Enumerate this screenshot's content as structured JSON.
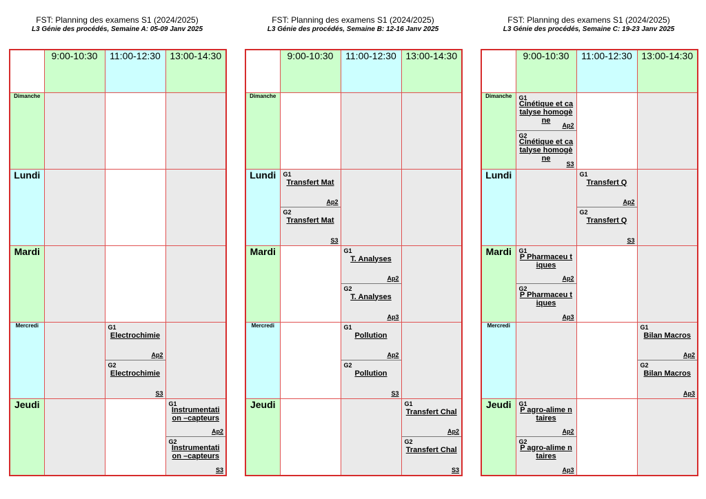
{
  "timeslots": [
    "9:00-10:30",
    "11:00-12:30",
    "13:00-14:30"
  ],
  "days": [
    "Dimanche",
    "Lundi",
    "Mardi",
    "Mercredi",
    "Jeudi"
  ],
  "weeks": [
    {
      "title": "FST: Planning des examens S1 (2024/2025)",
      "subtitle": "L3 Génie des procédés, Semaine A: 05-09 Janv 2025",
      "exams": {
        "3-1": [
          {
            "group": "G1",
            "subject": "Electrochimie",
            "room": "Ap2"
          },
          {
            "group": "G2",
            "subject": "Electrochimie",
            "room": "S3"
          }
        ],
        "4-2": [
          {
            "group": "G1",
            "subject": "Instrumentati on –capteurs",
            "room": "Ap2"
          },
          {
            "group": "G2",
            "subject": "Instrumentati on –capteurs",
            "room": "S3"
          }
        ]
      }
    },
    {
      "title": "FST: Planning des examens S1 (2024/2025)",
      "subtitle": "L3 Génie des procédés, Semaine B: 12-16 Janv 2025",
      "exams": {
        "1-0": [
          {
            "group": "G1",
            "subject": "Transfert Mat",
            "room": "Ap2"
          },
          {
            "group": "G2",
            "subject": "Transfert Mat",
            "room": "S3"
          }
        ],
        "2-1": [
          {
            "group": "G1",
            "subject": "T. Analyses",
            "room": "Ap2"
          },
          {
            "group": "G2",
            "subject": "T. Analyses",
            "room": "Ap3"
          }
        ],
        "3-1": [
          {
            "group": "G1",
            "subject": "Pollution",
            "room": "Ap2"
          },
          {
            "group": "G2",
            "subject": "Pollution",
            "room": "S3"
          }
        ],
        "4-2": [
          {
            "group": "G1",
            "subject": "Transfert Chal",
            "room": "Ap2"
          },
          {
            "group": "G2",
            "subject": "Transfert Chal",
            "room": "S3"
          }
        ]
      }
    },
    {
      "title": "FST: Planning des examens S1 (2024/2025)",
      "subtitle": "L3 Génie des procédés, Semaine C: 19-23 Janv 2025",
      "exams": {
        "0-0": [
          {
            "group": "G1",
            "subject": "Cinétique et catalyse homogène",
            "room": "Ap2"
          },
          {
            "group": "G2",
            "subject": "Cinétique et catalyse homogène",
            "room": "S3"
          }
        ],
        "1-1": [
          {
            "group": "G1",
            "subject": "Transfert Q",
            "room": "Ap2"
          },
          {
            "group": "G2",
            "subject": "Transfert Q",
            "room": "S3"
          }
        ],
        "2-0": [
          {
            "group": "G1",
            "subject": "P Pharmaceu tiques",
            "room": "Ap2"
          },
          {
            "group": "G2",
            "subject": "P Pharmaceu tiques",
            "room": "Ap3"
          }
        ],
        "3-2": [
          {
            "group": "G1",
            "subject": "Bilan Macros",
            "room": "Ap2"
          },
          {
            "group": "G2",
            "subject": "Bilan Macros",
            "room": "Ap3"
          }
        ],
        "4-0": [
          {
            "group": "G1",
            "subject": "P agro-alime ntaires",
            "room": "Ap2"
          },
          {
            "group": "G2",
            "subject": "P agro-alime ntaires",
            "room": "Ap3"
          }
        ]
      }
    }
  ]
}
